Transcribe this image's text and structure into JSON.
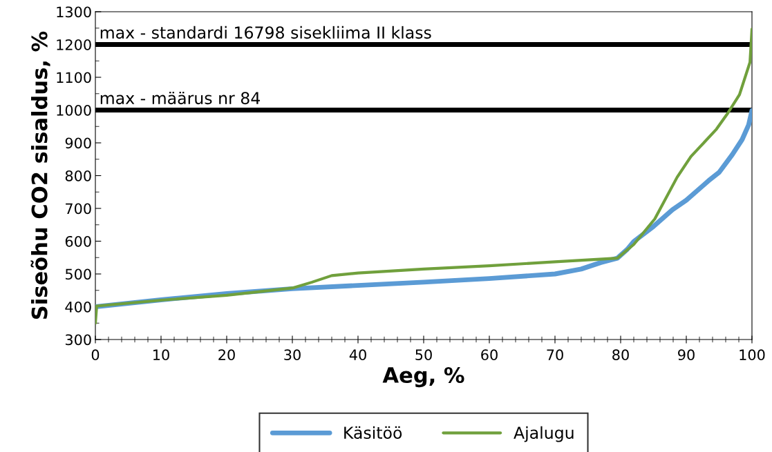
{
  "chart_data": {
    "type": "line",
    "xlabel": "Aeg, %",
    "ylabel": "Siseõhu CO2 sisaldus, %",
    "xlim": [
      0,
      100
    ],
    "xticks": [
      0,
      10,
      20,
      30,
      40,
      50,
      60,
      70,
      80,
      90,
      100
    ],
    "ylim": [
      300,
      1300
    ],
    "yticks": [
      300,
      400,
      500,
      600,
      700,
      800,
      900,
      1000,
      1100,
      1200,
      1300
    ],
    "grid": false,
    "legend": "bottom",
    "marker": "none",
    "line_style": "solid",
    "ref_lines": [
      {
        "axis": "y",
        "value": 1200,
        "label": "max - standardi 16798 sisekliima II klass",
        "color": "#000000"
      },
      {
        "axis": "y",
        "value": 1000,
        "label": "max - määrus nr 84",
        "color": "#000000"
      }
    ],
    "series": [
      {
        "name": "Käsitöö",
        "color": "#5b9bd5",
        "x": [
          0,
          10,
          20,
          30,
          40,
          50,
          60,
          70,
          74,
          77,
          79.5,
          81,
          82,
          85,
          87.9,
          90,
          93.6,
          95,
          97,
          98.5,
          99.5,
          100
        ],
        "values": [
          400,
          421,
          440,
          455,
          465,
          475,
          486,
          500,
          515,
          535,
          548,
          575,
          599,
          645,
          696,
          725,
          788,
          810,
          864,
          910,
          955,
          999
        ]
      },
      {
        "name": "Ajalugu",
        "color": "#70a03c",
        "x": [
          0,
          0.2,
          10,
          20,
          30,
          33,
          36,
          40,
          50,
          60,
          70,
          79.5,
          82,
          85.2,
          88.6,
          90.7,
          94.6,
          96.3,
          98.1,
          99.7,
          100
        ],
        "values": [
          350,
          402,
          420,
          435,
          457,
          475,
          495,
          503,
          515,
          525,
          537,
          548,
          590,
          668,
          795,
          858,
          942,
          990,
          1047,
          1146,
          1247
        ]
      }
    ]
  }
}
